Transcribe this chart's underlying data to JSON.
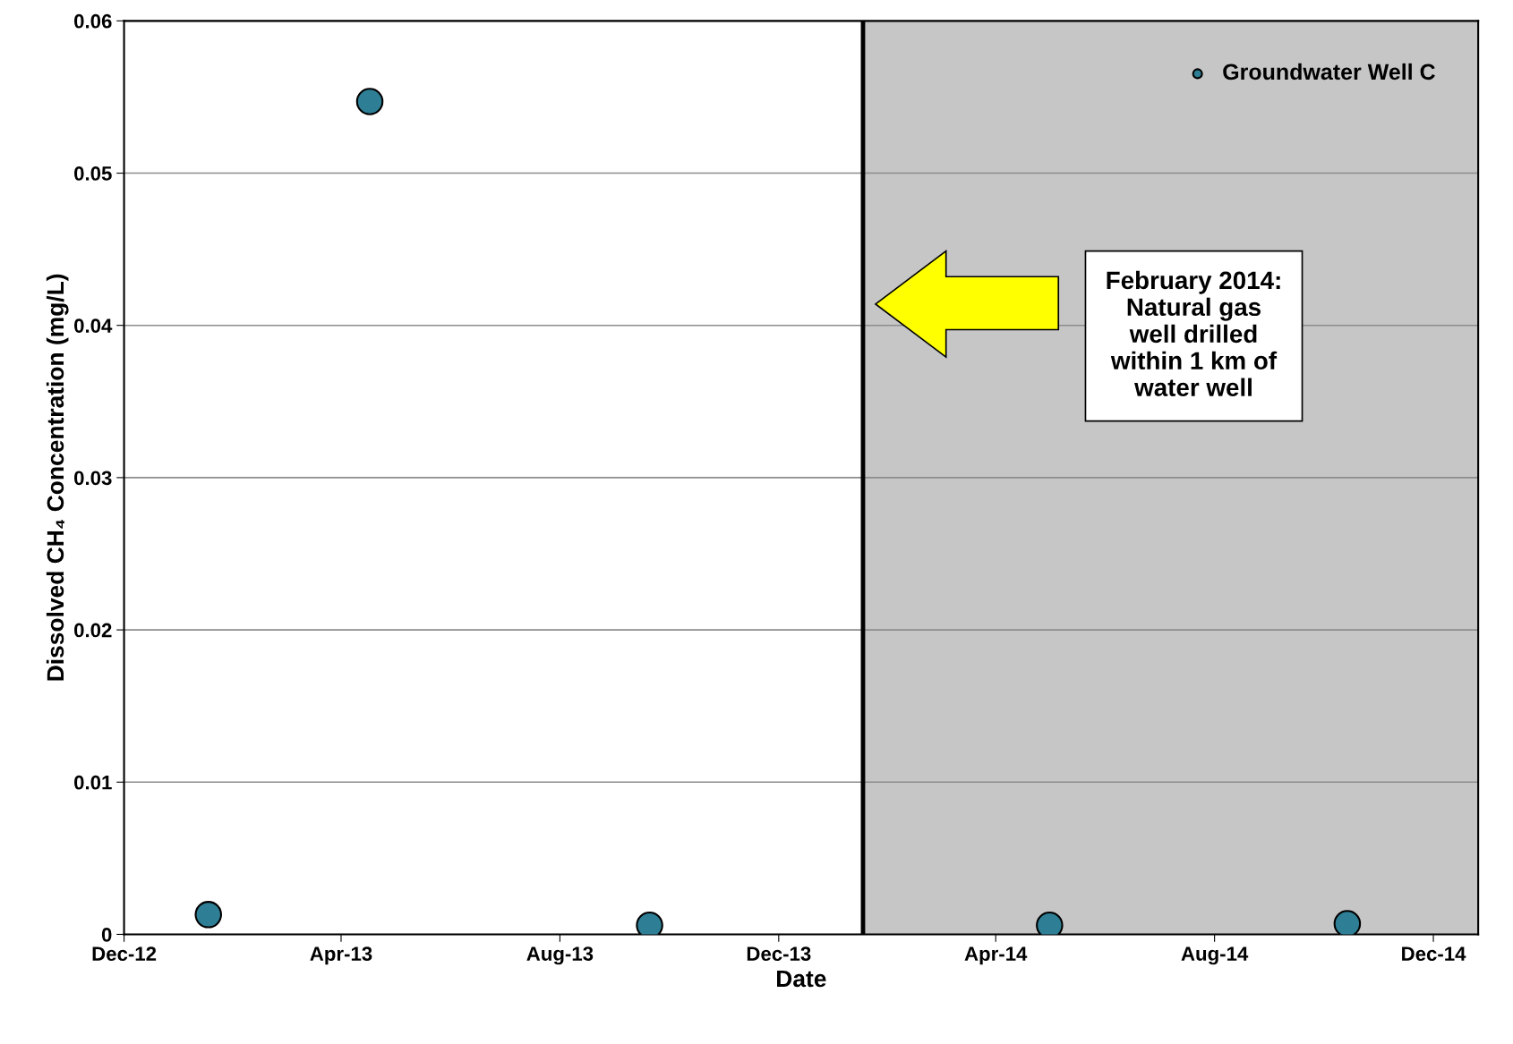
{
  "chart_data": {
    "type": "scatter",
    "xlabel": "Date",
    "ylabel": "Dissolved CH₄ Concentration (mg/L)",
    "series": [
      {
        "name": "Groundwater Well C",
        "color": "#2e7f96",
        "x": [
          "2013-01-17",
          "2013-04-17",
          "2013-09-20",
          "2014-05-01",
          "2014-10-14"
        ],
        "values": [
          0.0013,
          0.0547,
          0.0006,
          0.0006,
          0.0007
        ]
      }
    ],
    "xlim": [
      "2012-12-01",
      "2014-12-26"
    ],
    "xticks": [
      {
        "value": "2012-12-01",
        "label": "Dec-12"
      },
      {
        "value": "2013-04-01",
        "label": "Apr-13"
      },
      {
        "value": "2013-08-01",
        "label": "Aug-13"
      },
      {
        "value": "2013-12-01",
        "label": "Dec-13"
      },
      {
        "value": "2014-04-01",
        "label": "Apr-14"
      },
      {
        "value": "2014-08-01",
        "label": "Aug-14"
      },
      {
        "value": "2014-12-01",
        "label": "Dec-14"
      }
    ],
    "ylim": [
      0,
      0.06
    ],
    "yticks": [
      0,
      0.01,
      0.02,
      0.03,
      0.04,
      0.05,
      0.06
    ],
    "ref_lines": [
      {
        "axis": "x",
        "value": "2014-01-17",
        "color": "#000000",
        "line_style": "solid"
      }
    ],
    "bands": [
      {
        "axis": "x",
        "from": "2014-01-17",
        "to": "2014-12-26",
        "color": "#c6c6c6"
      }
    ],
    "annotations": [
      "February 2014:\nNatural gas\nwell drilled\nwithin 1 km of\nwater well"
    ],
    "grid": "y",
    "legend": "top right",
    "marker": "circle"
  }
}
